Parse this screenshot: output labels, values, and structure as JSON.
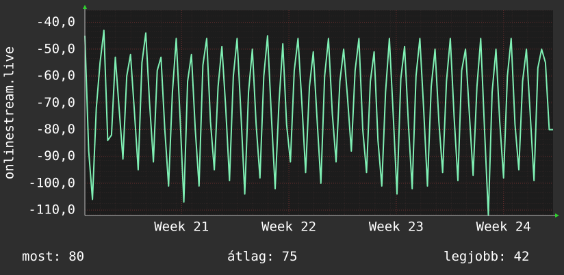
{
  "chart_data": {
    "type": "line",
    "y_label": "onlinestream.live",
    "values": [
      -45,
      -88,
      -106,
      -72,
      -55,
      -43,
      -84,
      -82,
      -53,
      -72,
      -91,
      -60,
      -52,
      -73,
      -95,
      -55,
      -44,
      -70,
      -92,
      -58,
      -53,
      -80,
      -101,
      -66,
      -46,
      -75,
      -107,
      -62,
      -52,
      -80,
      -101,
      -56,
      -46,
      -77,
      -95,
      -64,
      -49,
      -72,
      -99,
      -60,
      -46,
      -74,
      -104,
      -66,
      -50,
      -78,
      -98,
      -60,
      -45,
      -75,
      -102,
      -70,
      -48,
      -78,
      -92,
      -58,
      -46,
      -70,
      -96,
      -64,
      -51,
      -76,
      -100,
      -60,
      -46,
      -74,
      -92,
      -62,
      -50,
      -68,
      -88,
      -58,
      -46,
      -80,
      -96,
      -62,
      -51,
      -84,
      -101,
      -66,
      -46,
      -74,
      -104,
      -61,
      -49,
      -78,
      -102,
      -60,
      -46,
      -72,
      -101,
      -64,
      -50,
      -77,
      -96,
      -62,
      -46,
      -75,
      -99,
      -58,
      -50,
      -74,
      -97,
      -64,
      -46,
      -80,
      -112,
      -66,
      -50,
      -77,
      -98,
      -60,
      -46,
      -78,
      -95,
      -62,
      -50,
      -74,
      -99,
      -57,
      -50,
      -55,
      -80,
      -80
    ],
    "color": "#7ff0b4",
    "xlim": [
      0,
      123
    ],
    "xticks": [
      {
        "value": 25.4,
        "label": "Week 21"
      },
      {
        "value": 53.6,
        "label": "Week 22"
      },
      {
        "value": 81.8,
        "label": "Week 23"
      },
      {
        "value": 110,
        "label": "Week 24"
      }
    ],
    "ylim": [
      -112,
      -35.5
    ],
    "yticks": [
      {
        "value": -110,
        "label": "-110,0"
      },
      {
        "value": -100,
        "label": "-100,0"
      },
      {
        "value": -90,
        "label": "-90,0"
      },
      {
        "value": -80,
        "label": "-80,0"
      },
      {
        "value": -70,
        "label": "-70,0"
      },
      {
        "value": -60,
        "label": "-60,0"
      },
      {
        "value": -50,
        "label": "-50,0"
      },
      {
        "value": -40,
        "label": "-40,0"
      }
    ],
    "grid": true,
    "stats": [
      {
        "label": "most:",
        "value": 80
      },
      {
        "label": "átlag:",
        "value": 75
      },
      {
        "label": "legjobb:",
        "value": 42
      }
    ]
  }
}
